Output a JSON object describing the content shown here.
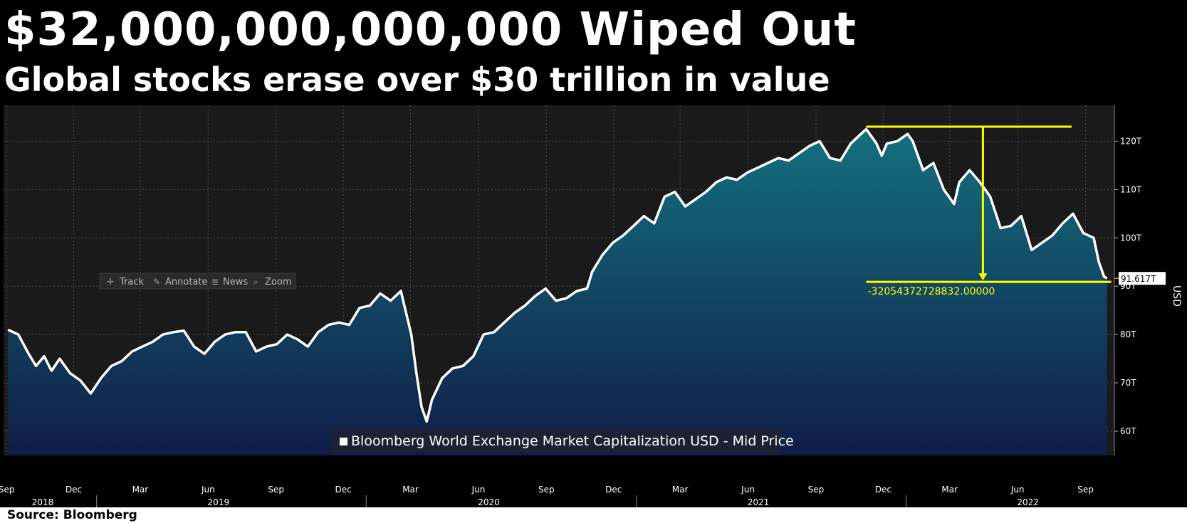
{
  "headline": "$32,000,000,000,000 Wiped Out",
  "subhead": "Global stocks erase over $30 trillion in value",
  "source": "Source: Bloomberg",
  "toolbar": {
    "track": "Track",
    "annotate": "Annotate",
    "news": "News",
    "zoom": "Zoom"
  },
  "colors": {
    "background": "#000000",
    "plot_background": "#1a1a1a",
    "line": "#ffffff",
    "fill_top": "#14707e",
    "fill_bottom": "#101d47",
    "annotation": "#ffff00",
    "price_tag_accent": "#e8a000"
  },
  "chart_data": {
    "type": "area",
    "legend": "Bloomberg World Exchange Market Capitalization USD - Mid Price",
    "legend_position": "bottom-center",
    "ylabel": "USD",
    "y_axis_side": "right",
    "ylim": [
      55,
      123
    ],
    "y_ticks": [
      {
        "value": 60,
        "label": "60T"
      },
      {
        "value": 70,
        "label": "70T"
      },
      {
        "value": 80,
        "label": "80T"
      },
      {
        "value": 90,
        "label": "90T"
      },
      {
        "value": 100,
        "label": "100T"
      },
      {
        "value": 110,
        "label": "110T"
      },
      {
        "value": 120,
        "label": "120T"
      }
    ],
    "grid": true,
    "xlim": [
      "2018-08-28",
      "2022-10-10"
    ],
    "x_month_ticks": [
      {
        "date": "2018-09-01",
        "label": "Sep"
      },
      {
        "date": "2018-12-01",
        "label": "Dec"
      },
      {
        "date": "2019-03-01",
        "label": "Mar"
      },
      {
        "date": "2019-06-01",
        "label": "Jun"
      },
      {
        "date": "2019-09-01",
        "label": "Sep"
      },
      {
        "date": "2019-12-01",
        "label": "Dec"
      },
      {
        "date": "2020-03-01",
        "label": "Mar"
      },
      {
        "date": "2020-06-01",
        "label": "Jun"
      },
      {
        "date": "2020-09-01",
        "label": "Sep"
      },
      {
        "date": "2020-12-01",
        "label": "Dec"
      },
      {
        "date": "2021-03-01",
        "label": "Mar"
      },
      {
        "date": "2021-06-01",
        "label": "Jun"
      },
      {
        "date": "2021-09-01",
        "label": "Sep"
      },
      {
        "date": "2021-12-01",
        "label": "Dec"
      },
      {
        "date": "2022-03-01",
        "label": "Mar"
      },
      {
        "date": "2022-06-01",
        "label": "Jun"
      },
      {
        "date": "2022-09-01",
        "label": "Sep"
      }
    ],
    "x_year_labels": [
      {
        "date": "2018-10-20",
        "label": "2018"
      },
      {
        "date": "2019-06-15",
        "label": "2019"
      },
      {
        "date": "2020-06-15",
        "label": "2020"
      },
      {
        "date": "2021-06-15",
        "label": "2021"
      },
      {
        "date": "2022-06-15",
        "label": "2022"
      }
    ],
    "year_dividers": [
      "2019-01-01",
      "2020-01-01",
      "2021-01-01",
      "2022-01-01"
    ],
    "series": [
      {
        "values_unit": "trillion USD",
        "points": [
          [
            "2018-09-03",
            81.0
          ],
          [
            "2018-09-17",
            80.0
          ],
          [
            "2018-10-01",
            76.0
          ],
          [
            "2018-10-11",
            73.5
          ],
          [
            "2018-10-22",
            75.5
          ],
          [
            "2018-11-01",
            72.5
          ],
          [
            "2018-11-12",
            75.0
          ],
          [
            "2018-11-26",
            72.0
          ],
          [
            "2018-12-10",
            70.5
          ],
          [
            "2018-12-24",
            67.8
          ],
          [
            "2019-01-07",
            71.0
          ],
          [
            "2019-01-21",
            73.5
          ],
          [
            "2019-02-04",
            74.5
          ],
          [
            "2019-02-18",
            76.5
          ],
          [
            "2019-03-04",
            77.5
          ],
          [
            "2019-03-18",
            78.5
          ],
          [
            "2019-04-01",
            80.0
          ],
          [
            "2019-04-15",
            80.5
          ],
          [
            "2019-04-29",
            80.8
          ],
          [
            "2019-05-13",
            77.5
          ],
          [
            "2019-05-27",
            76.0
          ],
          [
            "2019-06-10",
            78.5
          ],
          [
            "2019-06-24",
            80.0
          ],
          [
            "2019-07-08",
            80.5
          ],
          [
            "2019-07-22",
            80.5
          ],
          [
            "2019-08-05",
            76.5
          ],
          [
            "2019-08-19",
            77.5
          ],
          [
            "2019-09-02",
            78.0
          ],
          [
            "2019-09-16",
            80.0
          ],
          [
            "2019-09-30",
            79.0
          ],
          [
            "2019-10-14",
            77.5
          ],
          [
            "2019-10-28",
            80.5
          ],
          [
            "2019-11-11",
            82.0
          ],
          [
            "2019-11-25",
            82.5
          ],
          [
            "2019-12-09",
            82.0
          ],
          [
            "2019-12-23",
            85.5
          ],
          [
            "2020-01-06",
            86.0
          ],
          [
            "2020-01-20",
            88.5
          ],
          [
            "2020-02-03",
            87.0
          ],
          [
            "2020-02-17",
            89.0
          ],
          [
            "2020-03-02",
            80.0
          ],
          [
            "2020-03-09",
            72.0
          ],
          [
            "2020-03-16",
            65.0
          ],
          [
            "2020-03-23",
            62.0
          ],
          [
            "2020-03-30",
            66.5
          ],
          [
            "2020-04-13",
            71.0
          ],
          [
            "2020-04-27",
            73.0
          ],
          [
            "2020-05-11",
            73.5
          ],
          [
            "2020-05-25",
            75.5
          ],
          [
            "2020-06-08",
            80.0
          ],
          [
            "2020-06-22",
            80.5
          ],
          [
            "2020-07-06",
            82.5
          ],
          [
            "2020-07-20",
            84.5
          ],
          [
            "2020-08-03",
            86.0
          ],
          [
            "2020-08-17",
            88.0
          ],
          [
            "2020-08-31",
            89.5
          ],
          [
            "2020-09-14",
            87.0
          ],
          [
            "2020-09-28",
            87.5
          ],
          [
            "2020-10-12",
            89.0
          ],
          [
            "2020-10-26",
            89.5
          ],
          [
            "2020-11-02",
            93.0
          ],
          [
            "2020-11-16",
            96.5
          ],
          [
            "2020-11-30",
            99.0
          ],
          [
            "2020-12-14",
            100.5
          ],
          [
            "2020-12-28",
            102.5
          ],
          [
            "2021-01-11",
            104.5
          ],
          [
            "2021-01-25",
            103.0
          ],
          [
            "2021-02-08",
            108.5
          ],
          [
            "2021-02-22",
            109.5
          ],
          [
            "2021-03-08",
            106.5
          ],
          [
            "2021-03-22",
            108.0
          ],
          [
            "2021-04-05",
            109.5
          ],
          [
            "2021-04-19",
            111.5
          ],
          [
            "2021-05-03",
            112.5
          ],
          [
            "2021-05-17",
            112.0
          ],
          [
            "2021-05-31",
            113.5
          ],
          [
            "2021-06-14",
            114.5
          ],
          [
            "2021-06-28",
            115.5
          ],
          [
            "2021-07-12",
            116.5
          ],
          [
            "2021-07-26",
            116.0
          ],
          [
            "2021-08-09",
            117.5
          ],
          [
            "2021-08-23",
            119.0
          ],
          [
            "2021-09-06",
            120.0
          ],
          [
            "2021-09-20",
            116.5
          ],
          [
            "2021-10-04",
            116.0
          ],
          [
            "2021-10-18",
            119.5
          ],
          [
            "2021-11-01",
            121.5
          ],
          [
            "2021-11-08",
            122.5
          ],
          [
            "2021-11-22",
            119.5
          ],
          [
            "2021-11-29",
            117.0
          ],
          [
            "2021-12-06",
            119.5
          ],
          [
            "2021-12-20",
            120.0
          ],
          [
            "2022-01-03",
            121.5
          ],
          [
            "2022-01-10",
            120.0
          ],
          [
            "2022-01-24",
            114.0
          ],
          [
            "2022-02-07",
            115.5
          ],
          [
            "2022-02-21",
            110.0
          ],
          [
            "2022-03-07",
            107.0
          ],
          [
            "2022-03-14",
            111.5
          ],
          [
            "2022-03-28",
            114.0
          ],
          [
            "2022-04-11",
            111.5
          ],
          [
            "2022-04-25",
            108.5
          ],
          [
            "2022-05-09",
            102.0
          ],
          [
            "2022-05-23",
            102.5
          ],
          [
            "2022-06-06",
            104.5
          ],
          [
            "2022-06-20",
            97.5
          ],
          [
            "2022-07-04",
            99.0
          ],
          [
            "2022-07-18",
            100.5
          ],
          [
            "2022-08-01",
            103.0
          ],
          [
            "2022-08-15",
            105.0
          ],
          [
            "2022-08-29",
            101.0
          ],
          [
            "2022-09-12",
            100.0
          ],
          [
            "2022-09-19",
            95.0
          ],
          [
            "2022-09-26",
            92.0
          ],
          [
            "2022-09-30",
            91.617
          ]
        ]
      }
    ],
    "last_value_label": "91.617T",
    "drawdown": {
      "peak_date": "2021-11-08",
      "peak_value": 123.0,
      "trough_date": "2022-09-30",
      "trough_value": 90.9,
      "arrow_date": "2022-04-15",
      "label": "-32054372728832.00000"
    }
  }
}
